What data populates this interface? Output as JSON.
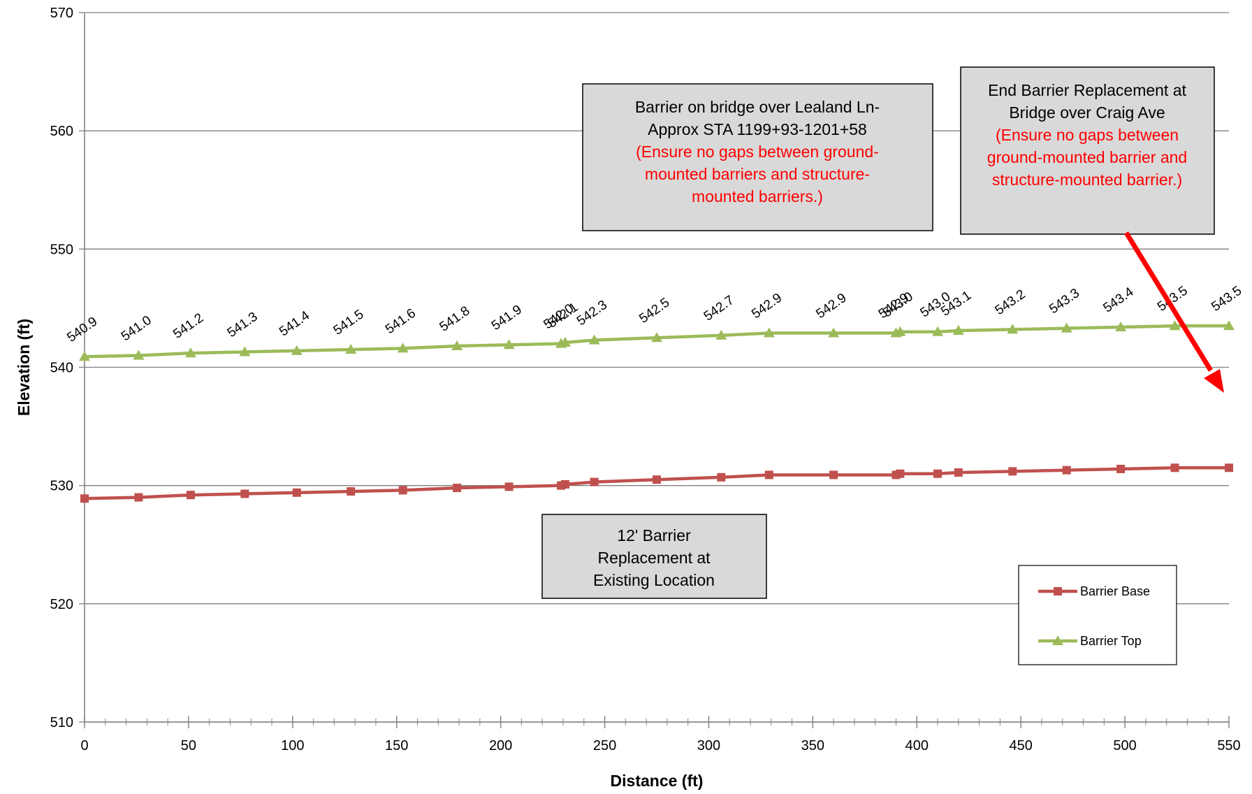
{
  "chart_data": {
    "type": "line",
    "xlabel": "Distance (ft)",
    "ylabel": "Elevation (ft)",
    "xlim": [
      0,
      550
    ],
    "ylim": [
      510,
      570
    ],
    "x_ticks": [
      0,
      50,
      100,
      150,
      200,
      250,
      300,
      350,
      400,
      450,
      500,
      550
    ],
    "y_ticks": [
      510,
      520,
      530,
      540,
      550,
      560,
      570
    ],
    "x_minor_step": 10,
    "grid": "horizontal major",
    "legend_position": "bottom-right",
    "series": [
      {
        "name": "Barrier Base",
        "color": "#c0504d",
        "marker": "square",
        "x": [
          0,
          26,
          51,
          77,
          102,
          128,
          153,
          179,
          204,
          229,
          231,
          245,
          275,
          306,
          329,
          360,
          390,
          392,
          410,
          420,
          446,
          472,
          498,
          524,
          550
        ],
        "y": [
          528.9,
          529.0,
          529.2,
          529.3,
          529.4,
          529.5,
          529.6,
          529.8,
          529.9,
          530.0,
          530.1,
          530.3,
          530.5,
          530.7,
          530.9,
          530.9,
          530.9,
          531.0,
          531.0,
          531.1,
          531.2,
          531.3,
          531.4,
          531.5,
          531.5
        ]
      },
      {
        "name": "Barrier Top",
        "color": "#9bbb59",
        "marker": "triangle",
        "x": [
          0,
          26,
          51,
          77,
          102,
          128,
          153,
          179,
          204,
          229,
          231,
          245,
          275,
          306,
          329,
          360,
          390,
          392,
          410,
          420,
          446,
          472,
          498,
          524,
          550
        ],
        "y": [
          540.9,
          541.0,
          541.2,
          541.3,
          541.4,
          541.5,
          541.6,
          541.8,
          541.9,
          542.0,
          542.1,
          542.3,
          542.5,
          542.7,
          542.9,
          542.9,
          542.9,
          543.0,
          543.0,
          543.1,
          543.2,
          543.3,
          543.4,
          543.5,
          543.5
        ],
        "data_labels": [
          "540.9",
          "541.0",
          "541.2",
          "541.3",
          "541.4",
          "541.5",
          "541.6",
          "541.8",
          "541.9",
          "542.0",
          "542.1",
          "542.3",
          "542.5",
          "542.7",
          "542.9",
          "542.9",
          "542.9",
          "543.0",
          "543.0",
          "543.1",
          "543.2",
          "543.3",
          "543.4",
          "543.5",
          "543.5"
        ]
      }
    ],
    "annotations": [
      {
        "id": "bridge-lealand",
        "lines": [
          {
            "text": "Barrier on bridge over Lealand Ln-",
            "color": "#000000"
          },
          {
            "text": "Approx STA 1199+93-1201+58",
            "color": "#000000"
          },
          {
            "text": "(Ensure no gaps between ground-",
            "color": "#ff0000"
          },
          {
            "text": "mounted barriers and structure-",
            "color": "#ff0000"
          },
          {
            "text": "mounted barriers.)",
            "color": "#ff0000"
          }
        ]
      },
      {
        "id": "end-barrier-craig",
        "lines": [
          {
            "text": "End Barrier Replacement at",
            "color": "#000000"
          },
          {
            "text": "Bridge over Craig Ave",
            "color": "#000000"
          },
          {
            "text": "(Ensure no gaps between",
            "color": "#ff0000"
          },
          {
            "text": "ground-mounted barrier and",
            "color": "#ff0000"
          },
          {
            "text": "structure-mounted barrier.)",
            "color": "#ff0000"
          }
        ]
      },
      {
        "id": "replacement-12ft",
        "lines": [
          {
            "text": "12' Barrier",
            "color": "#000000"
          },
          {
            "text": "Replacement at",
            "color": "#000000"
          },
          {
            "text": "Existing Location",
            "color": "#000000"
          }
        ]
      }
    ],
    "arrow_color": "#ff0000",
    "box_fill": "#d9d9d9"
  }
}
